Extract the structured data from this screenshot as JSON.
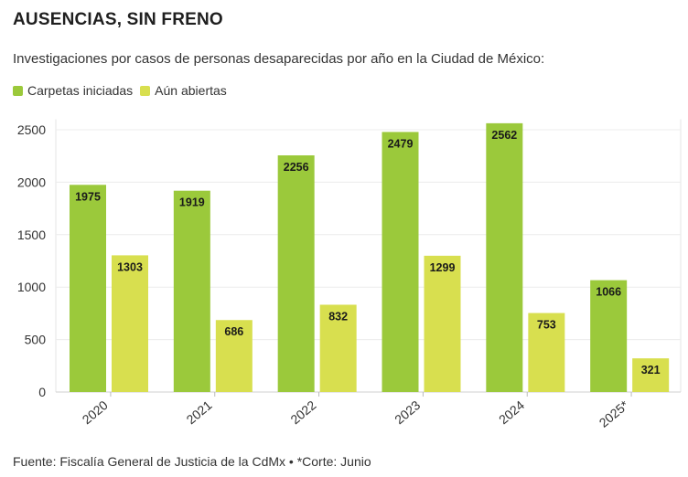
{
  "title": "AUSENCIAS, SIN FRENO",
  "subtitle": "Investigaciones por casos de personas desaparecidas por año en la Ciudad de México:",
  "source": "Fuente: Fiscalía General de Justicia de la CdMx • *Corte: Junio",
  "colors": {
    "carpetas": "#9bc93b",
    "abiertas": "#d8df4f"
  },
  "chart_data": {
    "type": "bar",
    "categories": [
      "2020",
      "2021",
      "2022",
      "2023",
      "2024",
      "2025*"
    ],
    "series": [
      {
        "name": "Carpetas iniciadas",
        "values": [
          1975,
          1919,
          2256,
          2479,
          2562,
          1066
        ]
      },
      {
        "name": "Aún abiertas",
        "values": [
          1303,
          686,
          832,
          1299,
          753,
          321
        ]
      }
    ],
    "yticks": [
      0,
      500,
      1000,
      1500,
      2000,
      2500
    ],
    "ylim": [
      0,
      2600
    ],
    "grid": true,
    "legend": "top-left"
  }
}
